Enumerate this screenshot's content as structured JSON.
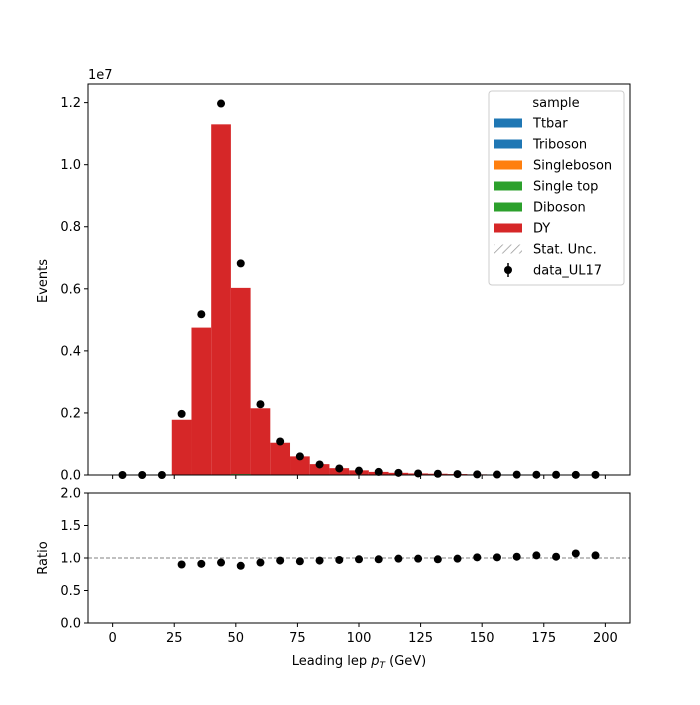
{
  "chart_data": [
    {
      "type": "bar",
      "stacked": true,
      "panel": "main",
      "scale_label": "1e7",
      "xlabel": "",
      "ylabel": "Events",
      "xlim": [
        -10,
        210
      ],
      "ylim": [
        0,
        1.26
      ],
      "y_unit": "1e7",
      "yticks": [
        0.0,
        0.2,
        0.4,
        0.6,
        0.8,
        1.0,
        1.2
      ],
      "ytick_labels": [
        "0.0",
        "0.2",
        "0.4",
        "0.6",
        "0.8",
        "1.0",
        "1.2"
      ],
      "xticks": [
        0,
        25,
        50,
        75,
        100,
        125,
        150,
        175,
        200
      ],
      "grid": false,
      "bin_edges": [
        0,
        8,
        16,
        24,
        32,
        40,
        48,
        56,
        64,
        72,
        80,
        88,
        96,
        104,
        112,
        120,
        128,
        136,
        144,
        152,
        160,
        168,
        176,
        184,
        192,
        200
      ],
      "series": [
        {
          "name": "Ttbar",
          "color": "#1f77b4",
          "values": [
            0,
            0,
            0,
            0,
            0,
            0,
            0,
            0,
            0,
            0,
            0,
            0,
            0,
            0,
            0,
            0,
            0,
            0,
            0,
            0,
            0,
            0,
            0,
            0,
            0
          ]
        },
        {
          "name": "Triboson",
          "color": "#1f77b4",
          "values": [
            0,
            0,
            0,
            0,
            0,
            0,
            0,
            0,
            0,
            0,
            0,
            0,
            0,
            0,
            0,
            0,
            0,
            0,
            0,
            0,
            0,
            0,
            0,
            0,
            0
          ]
        },
        {
          "name": "Singleboson",
          "color": "#ff7f0e",
          "values": [
            0,
            0,
            0,
            0,
            0,
            0,
            0,
            0,
            0,
            0,
            0,
            0,
            0,
            0,
            0,
            0,
            0,
            0,
            0,
            0,
            0,
            0,
            0,
            0,
            0
          ]
        },
        {
          "name": "Single top",
          "color": "#2ca02c",
          "values": [
            0,
            0,
            0,
            0,
            0,
            0,
            0,
            0,
            0,
            0,
            0,
            0,
            0,
            0,
            0,
            0,
            0,
            0,
            0,
            0,
            0,
            0,
            0,
            0,
            0
          ]
        },
        {
          "name": "Diboson",
          "color": "#2ca02c",
          "values": [
            0,
            0,
            0,
            0,
            0,
            0,
            0.003,
            0,
            0,
            0,
            0,
            0,
            0,
            0,
            0,
            0,
            0,
            0,
            0,
            0,
            0,
            0,
            0,
            0,
            0
          ]
        },
        {
          "name": "DY",
          "color": "#d62728",
          "values": [
            0,
            0,
            0,
            0.178,
            0.475,
            1.13,
            0.6,
            0.215,
            0.104,
            0.06,
            0.035,
            0.022,
            0.015,
            0.01,
            0.007,
            0.005,
            0.004,
            0.003,
            0.002,
            0.0015,
            0.0012,
            0.001,
            0.0008,
            0.0006,
            0.0005
          ]
        }
      ],
      "data_series": {
        "name": "data_UL17",
        "x": [
          4,
          12,
          20,
          28,
          36,
          44,
          52,
          60,
          68,
          76,
          84,
          92,
          100,
          108,
          116,
          124,
          132,
          140,
          148,
          156,
          164,
          172,
          180,
          188,
          196
        ],
        "values": [
          0,
          0,
          0,
          0.197,
          0.518,
          1.197,
          0.682,
          0.228,
          0.108,
          0.06,
          0.034,
          0.021,
          0.014,
          0.01,
          0.007,
          0.005,
          0.004,
          0.003,
          0.002,
          0.0015,
          0.0012,
          0.001,
          0.0008,
          0.0006,
          0.0005
        ],
        "color": "#000000"
      },
      "legend": {
        "title": "sample",
        "placement": "upper right",
        "entries": [
          {
            "label": "Ttbar",
            "kind": "patch",
            "color": "#1f77b4"
          },
          {
            "label": "Triboson",
            "kind": "patch",
            "color": "#1f77b4"
          },
          {
            "label": "Singleboson",
            "kind": "patch",
            "color": "#ff7f0e"
          },
          {
            "label": "Single top",
            "kind": "patch",
            "color": "#2ca02c"
          },
          {
            "label": "Diboson",
            "kind": "patch",
            "color": "#2ca02c"
          },
          {
            "label": "DY",
            "kind": "patch",
            "color": "#d62728"
          },
          {
            "label": "Stat. Unc.",
            "kind": "hatch",
            "color": "#999999"
          },
          {
            "label": "data_UL17",
            "kind": "errorbar",
            "color": "#000000"
          }
        ]
      }
    },
    {
      "type": "scatter",
      "panel": "ratio",
      "xlabel_prefix": "Leading lep ",
      "xlabel_math_base": "p",
      "xlabel_math_sub": "T",
      "xlabel_suffix": " (GeV)",
      "ylabel": "Ratio",
      "xlim": [
        -10,
        210
      ],
      "ylim": [
        0,
        2
      ],
      "xticks": [
        0,
        25,
        50,
        75,
        100,
        125,
        150,
        175,
        200
      ],
      "xtick_labels": [
        "0",
        "25",
        "50",
        "75",
        "100",
        "125",
        "150",
        "175",
        "200"
      ],
      "yticks": [
        0.0,
        0.5,
        1.0,
        1.5,
        2.0
      ],
      "ytick_labels": [
        "0.0",
        "0.5",
        "1.0",
        "1.5",
        "2.0"
      ],
      "reference_line": 1.0,
      "x": [
        28,
        36,
        44,
        52,
        60,
        68,
        76,
        84,
        92,
        100,
        108,
        116,
        124,
        132,
        140,
        148,
        156,
        164,
        172,
        180,
        188,
        196
      ],
      "values": [
        0.9,
        0.91,
        0.93,
        0.88,
        0.93,
        0.96,
        0.95,
        0.96,
        0.97,
        0.98,
        0.98,
        0.99,
        0.99,
        0.98,
        0.99,
        1.01,
        1.01,
        1.02,
        1.04,
        1.02,
        1.07,
        1.04
      ],
      "color": "#000000"
    }
  ]
}
